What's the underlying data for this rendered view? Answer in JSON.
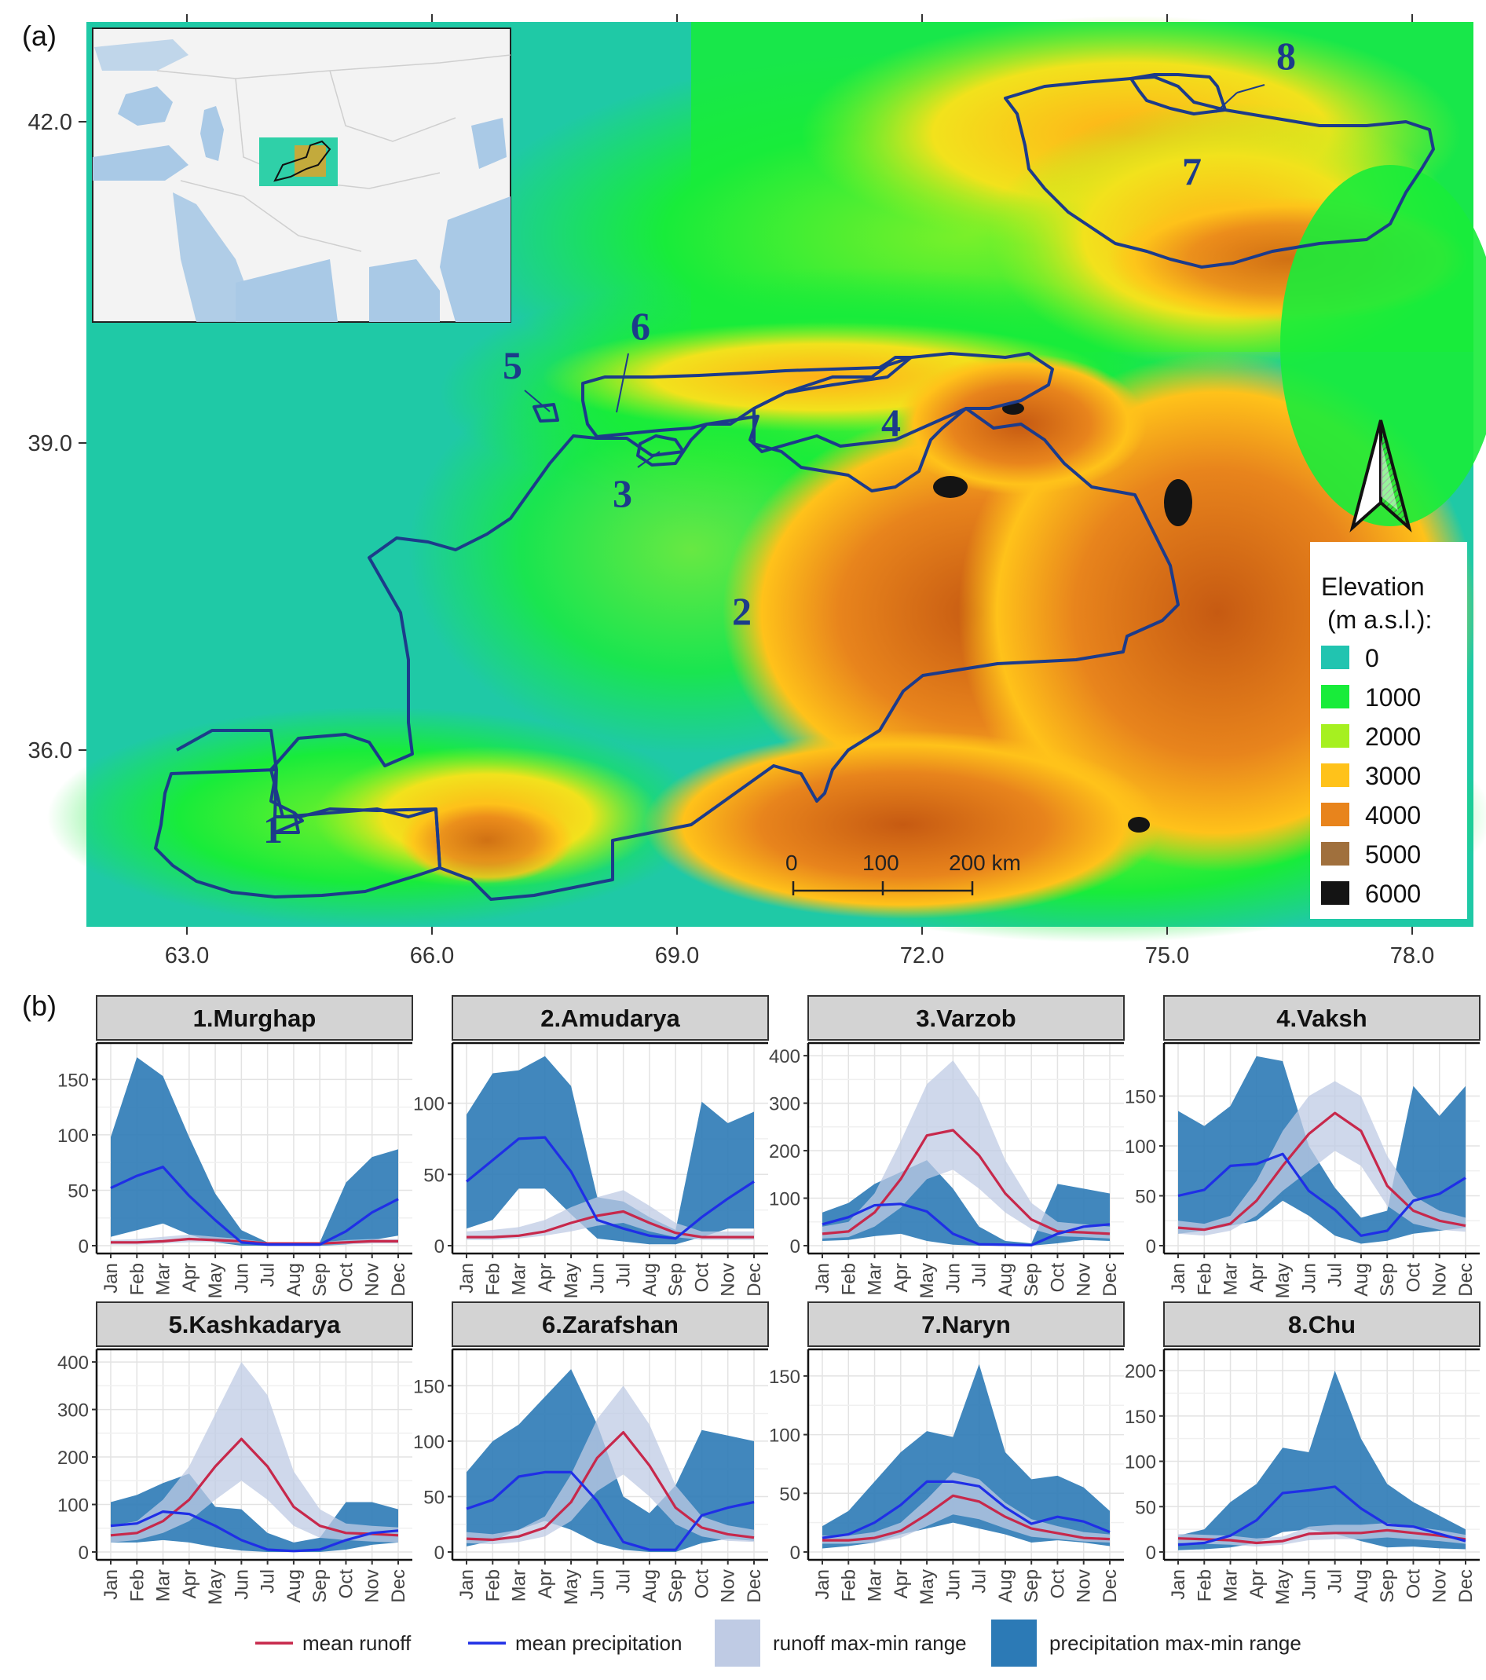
{
  "figure": {
    "panel_a_label": "(a)",
    "panel_b_label": "(b)"
  },
  "map": {
    "lat_ticks": [
      "42.0",
      "39.0",
      "36.0"
    ],
    "lon_ticks": [
      "63.0",
      "66.0",
      "69.0",
      "72.0",
      "75.0",
      "78.0"
    ],
    "basin_labels": [
      "1",
      "2",
      "3",
      "4",
      "5",
      "6",
      "7",
      "8"
    ],
    "north_arrow_icon": "north-arrow-icon",
    "scale_bar": {
      "labels": [
        "0",
        "100",
        "200 km"
      ]
    },
    "legend": {
      "title_line1": "Elevation",
      "title_line2": "(m a.s.l.):",
      "items": [
        {
          "label": "0",
          "color": "#21c4b0"
        },
        {
          "label": "1000",
          "color": "#18ec3a"
        },
        {
          "label": "2000",
          "color": "#a6f020"
        },
        {
          "label": "3000",
          "color": "#ffc21a"
        },
        {
          "label": "4000",
          "color": "#e8841c"
        },
        {
          "label": "5000",
          "color": "#a0703d"
        },
        {
          "label": "6000",
          "color": "#141414"
        }
      ]
    },
    "colors": {
      "basin_outline": "#1c3b8a",
      "lowland": "#1fc9a6",
      "water": "#a9c9e6"
    }
  },
  "chart_data": [
    {
      "type": "area",
      "title": "1.Murghap",
      "categories": [
        "Jan",
        "Feb",
        "Mar",
        "Apr",
        "May",
        "Jun",
        "Jul",
        "Aug",
        "Sep",
        "Oct",
        "Nov",
        "Dec"
      ],
      "ylim": [
        0,
        180
      ],
      "yticks": [
        "0",
        "50",
        "100",
        "150"
      ],
      "series": [
        {
          "name": "mean runoff",
          "values": [
            3,
            3,
            4,
            6,
            5,
            4,
            2,
            2,
            2,
            3,
            4,
            4
          ]
        },
        {
          "name": "mean precipitation",
          "values": [
            52,
            63,
            71,
            45,
            23,
            3,
            1,
            1,
            1,
            13,
            30,
            42
          ]
        },
        {
          "name": "runoff max-min range",
          "min": [
            1,
            1,
            2,
            3,
            3,
            2,
            1,
            1,
            1,
            1,
            2,
            2
          ],
          "max": [
            5,
            6,
            8,
            10,
            8,
            6,
            3,
            3,
            3,
            5,
            6,
            6
          ]
        },
        {
          "name": "precipitation max-min range",
          "min": [
            8,
            14,
            20,
            10,
            3,
            0,
            0,
            0,
            0,
            1,
            5,
            9
          ],
          "max": [
            98,
            170,
            153,
            98,
            47,
            14,
            3,
            3,
            3,
            57,
            80,
            87
          ]
        }
      ]
    },
    {
      "type": "area",
      "title": "2.Amudarya",
      "categories": [
        "Jan",
        "Feb",
        "Mar",
        "Apr",
        "May",
        "Jun",
        "Jul",
        "Aug",
        "Sep",
        "Oct",
        "Nov",
        "Dec"
      ],
      "ylim": [
        0,
        140
      ],
      "yticks": [
        "0",
        "50",
        "100"
      ],
      "series": [
        {
          "name": "mean runoff",
          "values": [
            6,
            6,
            7,
            10,
            16,
            21,
            24,
            16,
            9,
            6,
            6,
            6
          ]
        },
        {
          "name": "mean precipitation",
          "values": [
            45,
            60,
            75,
            76,
            52,
            18,
            12,
            7,
            5,
            20,
            33,
            45
          ]
        },
        {
          "name": "runoff max-min range",
          "min": [
            4,
            4,
            5,
            7,
            10,
            14,
            16,
            10,
            6,
            4,
            4,
            4
          ],
          "max": [
            10,
            11,
            13,
            18,
            27,
            34,
            39,
            28,
            16,
            10,
            10,
            10
          ]
        },
        {
          "name": "precipitation max-min range",
          "min": [
            12,
            18,
            40,
            40,
            22,
            5,
            3,
            1,
            1,
            6,
            12,
            12
          ],
          "max": [
            92,
            121,
            123,
            133,
            112,
            34,
            31,
            20,
            11,
            101,
            86,
            94
          ]
        }
      ]
    },
    {
      "type": "area",
      "title": "3.Varzob",
      "categories": [
        "Jan",
        "Feb",
        "Mar",
        "Apr",
        "May",
        "Jun",
        "Jul",
        "Aug",
        "Sep",
        "Oct",
        "Nov",
        "Dec"
      ],
      "ylim": [
        0,
        420
      ],
      "yticks": [
        "0",
        "100",
        "200",
        "300",
        "400"
      ],
      "series": [
        {
          "name": "mean runoff",
          "values": [
            25,
            30,
            70,
            140,
            232,
            243,
            190,
            110,
            55,
            30,
            28,
            25
          ]
        },
        {
          "name": "mean precipitation",
          "values": [
            45,
            60,
            85,
            88,
            72,
            25,
            3,
            2,
            1,
            25,
            40,
            45
          ]
        },
        {
          "name": "runoff max-min range",
          "min": [
            15,
            18,
            40,
            80,
            140,
            160,
            120,
            70,
            35,
            20,
            18,
            15
          ],
          "max": [
            40,
            50,
            110,
            220,
            340,
            390,
            310,
            180,
            90,
            50,
            45,
            40
          ]
        },
        {
          "name": "precipitation max-min range",
          "min": [
            10,
            12,
            20,
            25,
            10,
            2,
            0,
            0,
            0,
            5,
            12,
            10
          ],
          "max": [
            70,
            90,
            130,
            155,
            180,
            120,
            40,
            10,
            5,
            130,
            120,
            110
          ]
        }
      ]
    },
    {
      "type": "area",
      "title": "4.Vaksh",
      "categories": [
        "Jan",
        "Feb",
        "Mar",
        "Apr",
        "May",
        "Jun",
        "Jul",
        "Aug",
        "Sep",
        "Oct",
        "Nov",
        "Dec"
      ],
      "ylim": [
        0,
        200
      ],
      "yticks": [
        "0",
        "50",
        "100",
        "150"
      ],
      "series": [
        {
          "name": "mean runoff",
          "values": [
            18,
            16,
            22,
            45,
            80,
            112,
            133,
            115,
            60,
            35,
            25,
            20
          ]
        },
        {
          "name": "mean precipitation",
          "values": [
            50,
            56,
            80,
            82,
            92,
            55,
            36,
            10,
            15,
            45,
            52,
            68
          ]
        },
        {
          "name": "runoff max-min range",
          "min": [
            12,
            10,
            15,
            30,
            55,
            75,
            95,
            80,
            40,
            22,
            16,
            14
          ],
          "max": [
            25,
            22,
            30,
            65,
            115,
            150,
            165,
            150,
            90,
            50,
            35,
            28
          ]
        },
        {
          "name": "precipitation max-min range",
          "min": [
            12,
            15,
            20,
            25,
            45,
            30,
            10,
            2,
            5,
            12,
            15,
            18
          ],
          "max": [
            135,
            120,
            140,
            190,
            185,
            100,
            58,
            28,
            35,
            160,
            130,
            160
          ]
        }
      ]
    },
    {
      "type": "area",
      "title": "5.Kashkadarya",
      "categories": [
        "Jan",
        "Feb",
        "Mar",
        "Apr",
        "May",
        "Jun",
        "Jul",
        "Aug",
        "Sep",
        "Oct",
        "Nov",
        "Dec"
      ],
      "ylim": [
        0,
        420
      ],
      "yticks": [
        "0",
        "100",
        "200",
        "300",
        "400"
      ],
      "series": [
        {
          "name": "mean runoff",
          "values": [
            35,
            40,
            65,
            110,
            180,
            238,
            180,
            95,
            55,
            40,
            38,
            35
          ]
        },
        {
          "name": "mean precipitation",
          "values": [
            55,
            60,
            85,
            80,
            55,
            25,
            5,
            2,
            5,
            25,
            40,
            45
          ]
        },
        {
          "name": "runoff max-min range",
          "min": [
            20,
            25,
            40,
            65,
            110,
            150,
            110,
            55,
            30,
            25,
            22,
            20
          ],
          "max": [
            55,
            65,
            110,
            180,
            290,
            400,
            330,
            170,
            90,
            60,
            55,
            52
          ]
        },
        {
          "name": "precipitation max-min range",
          "min": [
            20,
            20,
            25,
            20,
            10,
            3,
            0,
            0,
            0,
            5,
            15,
            20
          ],
          "max": [
            105,
            120,
            145,
            165,
            95,
            90,
            40,
            20,
            30,
            105,
            105,
            90
          ]
        }
      ]
    },
    {
      "type": "area",
      "title": "6.Zarafshan",
      "categories": [
        "Jan",
        "Feb",
        "Mar",
        "Apr",
        "May",
        "Jun",
        "Jul",
        "Aug",
        "Sep",
        "Oct",
        "Nov",
        "Dec"
      ],
      "ylim": [
        0,
        180
      ],
      "yticks": [
        "0",
        "50",
        "100",
        "150"
      ],
      "series": [
        {
          "name": "mean runoff",
          "values": [
            12,
            11,
            14,
            22,
            45,
            85,
            108,
            78,
            40,
            22,
            16,
            13
          ]
        },
        {
          "name": "mean precipitation",
          "values": [
            39,
            47,
            68,
            72,
            72,
            46,
            9,
            2,
            2,
            33,
            40,
            45
          ]
        },
        {
          "name": "runoff max-min range",
          "min": [
            8,
            7,
            9,
            14,
            28,
            55,
            70,
            50,
            25,
            14,
            10,
            9
          ],
          "max": [
            18,
            16,
            20,
            32,
            70,
            120,
            150,
            115,
            60,
            32,
            24,
            20
          ]
        },
        {
          "name": "precipitation max-min range",
          "min": [
            5,
            10,
            20,
            28,
            20,
            8,
            2,
            0,
            0,
            8,
            12,
            10
          ],
          "max": [
            72,
            100,
            115,
            140,
            165,
            115,
            50,
            35,
            60,
            110,
            105,
            100
          ]
        }
      ]
    },
    {
      "type": "area",
      "title": "7.Naryn",
      "categories": [
        "Jan",
        "Feb",
        "Mar",
        "Apr",
        "May",
        "Jun",
        "Jul",
        "Aug",
        "Sep",
        "Oct",
        "Nov",
        "Dec"
      ],
      "ylim": [
        0,
        170
      ],
      "yticks": [
        "0",
        "50",
        "100",
        "150"
      ],
      "series": [
        {
          "name": "mean runoff",
          "values": [
            10,
            10,
            12,
            18,
            32,
            48,
            43,
            30,
            20,
            16,
            12,
            11
          ]
        },
        {
          "name": "mean precipitation",
          "values": [
            12,
            15,
            25,
            40,
            60,
            60,
            56,
            38,
            24,
            30,
            26,
            17
          ]
        },
        {
          "name": "runoff max-min range",
          "min": [
            7,
            7,
            8,
            12,
            22,
            32,
            28,
            20,
            13,
            11,
            9,
            8
          ],
          "max": [
            14,
            14,
            17,
            25,
            45,
            68,
            62,
            42,
            28,
            22,
            17,
            15
          ]
        },
        {
          "name": "precipitation max-min range",
          "min": [
            3,
            5,
            8,
            15,
            20,
            25,
            20,
            15,
            8,
            10,
            8,
            5
          ],
          "max": [
            22,
            35,
            60,
            85,
            103,
            98,
            160,
            85,
            62,
            65,
            55,
            35
          ]
        }
      ]
    },
    {
      "type": "area",
      "title": "8.Chu",
      "categories": [
        "Jan",
        "Feb",
        "Mar",
        "Apr",
        "May",
        "Jun",
        "Jul",
        "Aug",
        "Sep",
        "Oct",
        "Nov",
        "Dec"
      ],
      "ylim": [
        0,
        220
      ],
      "yticks": [
        "0",
        "50",
        "100",
        "150",
        "200"
      ],
      "series": [
        {
          "name": "mean runoff",
          "values": [
            15,
            14,
            13,
            10,
            12,
            20,
            21,
            21,
            24,
            21,
            18,
            14
          ]
        },
        {
          "name": "mean precipitation",
          "values": [
            8,
            10,
            18,
            35,
            65,
            68,
            72,
            48,
            30,
            28,
            20,
            12
          ]
        },
        {
          "name": "runoff max-min range",
          "min": [
            10,
            9,
            8,
            6,
            8,
            13,
            14,
            14,
            16,
            14,
            12,
            9
          ],
          "max": [
            20,
            19,
            18,
            15,
            17,
            28,
            30,
            30,
            32,
            28,
            24,
            19
          ]
        },
        {
          "name": "precipitation max-min range",
          "min": [
            2,
            3,
            5,
            10,
            22,
            25,
            20,
            12,
            5,
            6,
            4,
            3
          ],
          "max": [
            18,
            25,
            55,
            75,
            115,
            110,
            200,
            125,
            75,
            55,
            40,
            25
          ]
        }
      ]
    }
  ],
  "bottom_legend": {
    "items": [
      {
        "label": "mean runoff",
        "color": "#c7284b",
        "kind": "line"
      },
      {
        "label": "mean precipitation",
        "color": "#1f2fe6",
        "kind": "line"
      },
      {
        "label": "runoff max-min range",
        "color": "#bfcbe4",
        "kind": "fill"
      },
      {
        "label": "precipitation max-min range",
        "color": "#2c7ab6",
        "kind": "fill"
      }
    ]
  }
}
